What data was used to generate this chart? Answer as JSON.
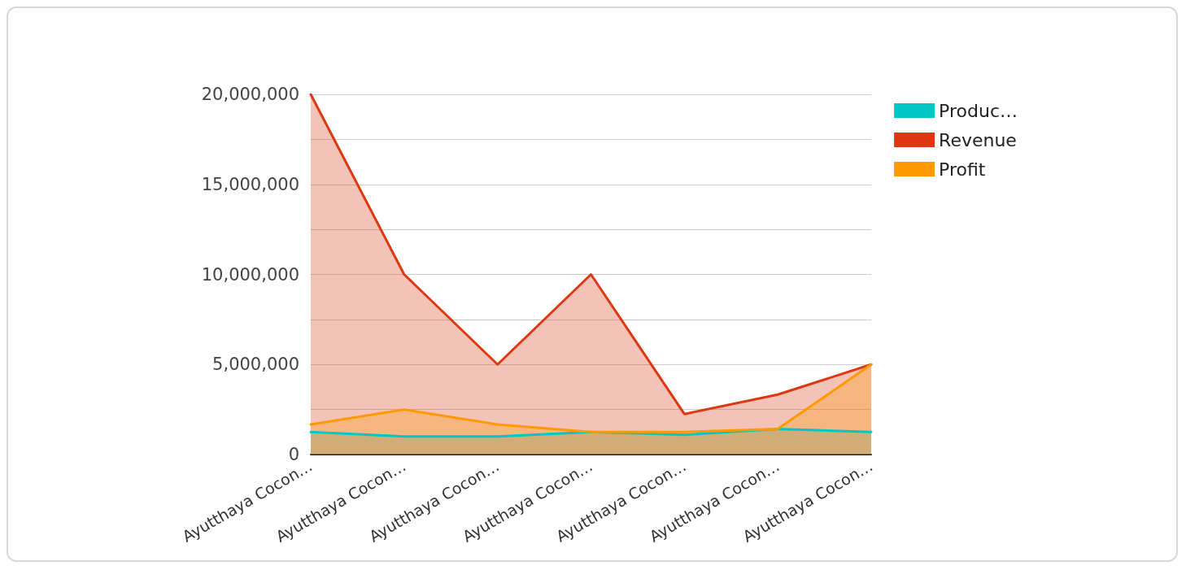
{
  "chart_data": {
    "type": "area",
    "categories": [
      "Ayutthaya Cocon…",
      "Ayutthaya Cocon…",
      "Ayutthaya Cocon…",
      "Ayutthaya Cocon…",
      "Ayutthaya Cocon…",
      "Ayutthaya Cocon…",
      "Ayutthaya Cocon…"
    ],
    "series": [
      {
        "name": "Produc…",
        "color": "#00c8c8",
        "values": [
          1250000,
          1000000,
          1000000,
          1250000,
          1100000,
          1420000,
          1250000
        ]
      },
      {
        "name": "Revenue",
        "color": "#dc3912",
        "values": [
          20000000,
          10000000,
          5000000,
          10000000,
          2250000,
          3330000,
          5000000
        ]
      },
      {
        "name": "Profit",
        "color": "#ff9900",
        "values": [
          1670000,
          2500000,
          1670000,
          1250000,
          1250000,
          1420000,
          5000000
        ]
      }
    ],
    "ylim": [
      0,
      20000000
    ],
    "yticks": [
      0,
      {
        "value": 2500000,
        "label": null
      },
      {
        "value": 5000000,
        "label": "5,000,000"
      },
      {
        "value": 7500000,
        "label": null
      },
      {
        "value": 10000000,
        "label": "10,000,000"
      },
      {
        "value": 12500000,
        "label": null
      },
      {
        "value": 15000000,
        "label": "15,000,000"
      },
      {
        "value": 17500000,
        "label": null
      },
      {
        "value": 20000000,
        "label": "20,000,000"
      }
    ],
    "grid": "y",
    "legend": "top right",
    "marker": "none",
    "line_style": "solid"
  }
}
